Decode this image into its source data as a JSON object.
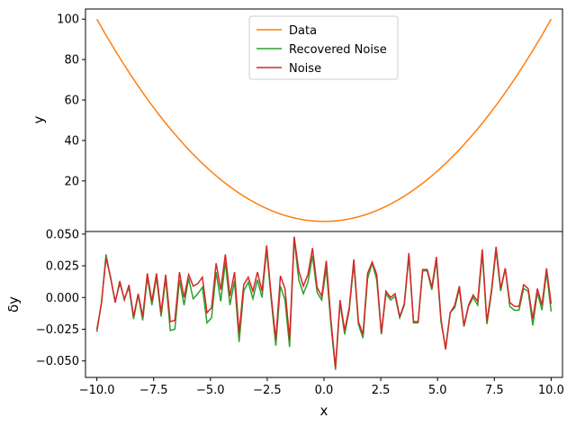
{
  "chart_data": [
    {
      "type": "line",
      "title": "",
      "xlabel": "",
      "ylabel": "y",
      "xlim": [
        -10.5,
        10.5
      ],
      "ylim": [
        -5,
        105
      ],
      "yticks": [
        20,
        40,
        60,
        80,
        100
      ],
      "ytick_labels": [
        "20",
        "40",
        "60",
        "80",
        "100"
      ],
      "legend": {
        "placement": "upper center",
        "entries": [
          {
            "name": "Data",
            "color": "#ff7f0e"
          },
          {
            "name": "Recovered Noise",
            "color": "#2ca02c"
          },
          {
            "name": "Noise",
            "color": "#d62728"
          }
        ]
      },
      "series": [
        {
          "name": "Data",
          "color": "#ff7f0e",
          "formula": "y = x^2",
          "x_range": [
            -10,
            10
          ]
        }
      ]
    },
    {
      "type": "line",
      "title": "",
      "xlabel": "x",
      "ylabel": "δy",
      "xlim": [
        -10.5,
        10.5
      ],
      "ylim": [
        -0.063,
        0.052
      ],
      "xticks": [
        -10,
        -7.5,
        -5,
        -2.5,
        0,
        2.5,
        5,
        7.5,
        10
      ],
      "xtick_labels": [
        "−10.0",
        "−7.5",
        "−5.0",
        "−2.5",
        "0.0",
        "2.5",
        "5.0",
        "7.5",
        "10.0"
      ],
      "yticks": [
        -0.05,
        -0.025,
        0,
        0.025,
        0.05
      ],
      "ytick_labels": [
        "−0.050",
        "−0.025",
        "0.000",
        "0.025",
        "0.050"
      ],
      "x_start": -10,
      "x_end": 10,
      "series": [
        {
          "name": "Recovered Noise",
          "color": "#2ca02c",
          "values": [
            -0.025,
            -0.005,
            0.034,
            0.015,
            -0.003,
            0.011,
            -0.001,
            0.008,
            -0.017,
            0.002,
            -0.018,
            0.016,
            -0.006,
            0.016,
            -0.015,
            0.015,
            -0.026,
            -0.025,
            0.014,
            -0.006,
            0.015,
            -0.001,
            0.003,
            0.008,
            -0.02,
            -0.016,
            0.02,
            -0.003,
            0.028,
            -0.006,
            0.013,
            -0.035,
            0.005,
            0.012,
            -0.001,
            0.014,
            0.0,
            0.038,
            -0.002,
            -0.038,
            0.009,
            -0.002,
            -0.039,
            0.046,
            0.014,
            0.003,
            0.012,
            0.033,
            0.004,
            -0.002,
            0.023,
            -0.021,
            -0.057,
            -0.004,
            -0.029,
            -0.01,
            0.027,
            -0.021,
            -0.032,
            0.015,
            0.027,
            0.014,
            -0.029,
            0.003,
            -0.002,
            0.001,
            -0.016,
            -0.006,
            0.033,
            -0.02,
            -0.02,
            0.021,
            0.021,
            0.006,
            0.029,
            -0.019,
            -0.04,
            -0.012,
            -0.008,
            0.007,
            -0.023,
            -0.007,
            0.0,
            -0.006,
            0.035,
            -0.021,
            0.004,
            0.037,
            0.005,
            0.023,
            -0.007,
            -0.01,
            -0.01,
            0.007,
            0.005,
            -0.022,
            0.004,
            -0.01,
            0.02,
            -0.011
          ]
        },
        {
          "name": "Noise",
          "color": "#d62728",
          "values": [
            -0.027,
            -0.004,
            0.031,
            0.016,
            -0.004,
            0.013,
            -0.002,
            0.01,
            -0.015,
            0.003,
            -0.015,
            0.019,
            -0.003,
            0.019,
            -0.012,
            0.018,
            -0.019,
            -0.018,
            0.02,
            0.0,
            0.018,
            0.009,
            0.011,
            0.016,
            -0.012,
            -0.008,
            0.027,
            0.006,
            0.034,
            0.001,
            0.02,
            -0.028,
            0.01,
            0.016,
            0.005,
            0.02,
            0.005,
            0.041,
            0.001,
            -0.033,
            0.017,
            0.007,
            -0.033,
            0.048,
            0.021,
            0.009,
            0.018,
            0.039,
            0.008,
            0.001,
            0.029,
            -0.017,
            -0.055,
            -0.002,
            -0.026,
            -0.008,
            0.03,
            -0.019,
            -0.029,
            0.019,
            0.028,
            0.018,
            -0.028,
            0.005,
            0.0,
            0.003,
            -0.015,
            -0.005,
            0.035,
            -0.019,
            -0.019,
            0.022,
            0.022,
            0.008,
            0.032,
            -0.017,
            -0.041,
            -0.012,
            -0.006,
            0.009,
            -0.022,
            -0.006,
            0.002,
            -0.003,
            0.038,
            -0.019,
            0.006,
            0.04,
            0.007,
            0.023,
            -0.004,
            -0.007,
            -0.007,
            0.01,
            0.007,
            -0.017,
            0.007,
            -0.006,
            0.023,
            -0.005
          ]
        }
      ]
    }
  ]
}
